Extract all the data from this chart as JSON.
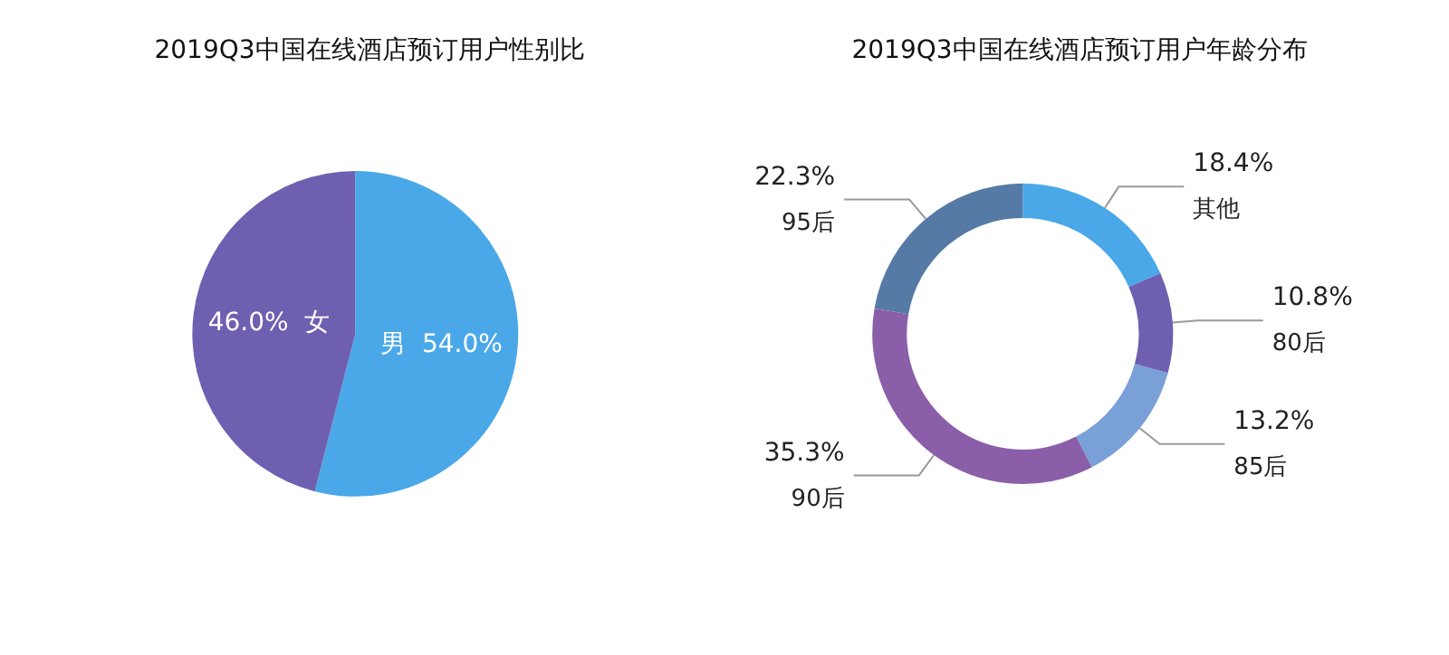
{
  "chart_data": [
    {
      "type": "pie",
      "title": "2019Q3中国在线酒店预订用户性别比",
      "categories": [
        "男",
        "女"
      ],
      "values": [
        54.0,
        46.0
      ],
      "value_labels": [
        "54.0%",
        "46.0%"
      ],
      "colors": [
        "#4aa8e8",
        "#6e5fb0"
      ],
      "legend": false
    },
    {
      "type": "donut",
      "title": "2019Q3中国在线酒店预订用户年龄分布",
      "categories": [
        "其他",
        "80后",
        "85后",
        "90后",
        "95后"
      ],
      "values": [
        18.4,
        10.8,
        13.2,
        35.3,
        22.3
      ],
      "value_labels": [
        "18.4%",
        "10.8%",
        "13.2%",
        "35.3%",
        "22.3%"
      ],
      "colors": [
        "#4aa8e8",
        "#6e5fb0",
        "#7aa0d8",
        "#8a5ea8",
        "#547aa5"
      ],
      "legend": false
    }
  ]
}
